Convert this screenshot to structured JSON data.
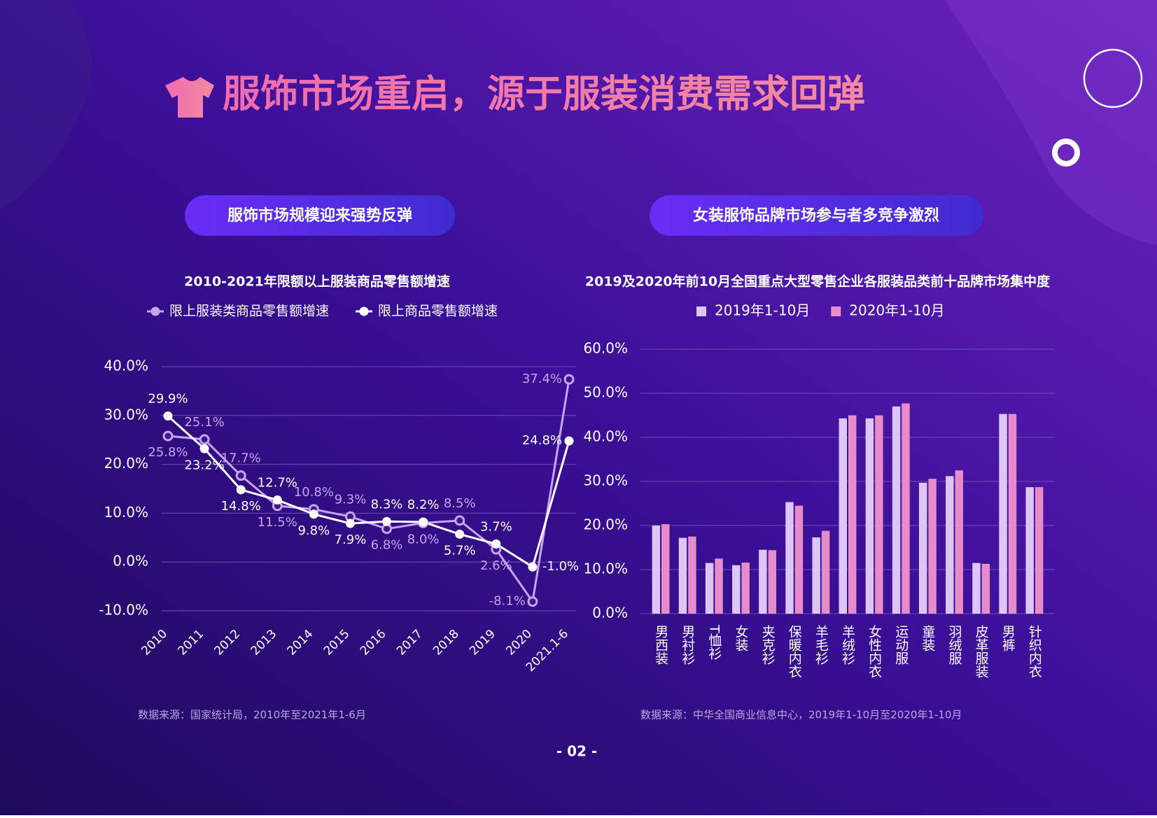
{
  "title": "服饰市场重启，源于服装消费需求回弹",
  "page_number": "- 02 -",
  "chart_data": [
    {
      "type": "line",
      "heading": "服饰市场规模迎来强势反弹",
      "title": "2010-2021年限额以上服装商品零售额增速",
      "source": "数据来源：国家统计局，2010年至2021年1-6月",
      "categories": [
        "2010",
        "2011",
        "2012",
        "2013",
        "2014",
        "2015",
        "2016",
        "2017",
        "2018",
        "2019",
        "2020",
        "2021.1-6"
      ],
      "series": [
        {
          "name": "限上服装类商品零售额增速",
          "color": "#c9a3f0",
          "values": [
            25.8,
            25.1,
            17.7,
            11.5,
            10.8,
            9.3,
            6.8,
            8.0,
            8.5,
            2.6,
            -8.1,
            37.4
          ],
          "value_labels": [
            "25.8%",
            "25.1%",
            "17.7%",
            "11.5%",
            "10.8%",
            "9.3%",
            "6.8%",
            "8.0%",
            "8.5%",
            "2.6%",
            "-8.1%",
            "37.4%"
          ]
        },
        {
          "name": "限上商品零售额增速",
          "color": "#ffffff",
          "values": [
            29.9,
            23.2,
            14.8,
            12.7,
            9.8,
            7.9,
            8.3,
            8.2,
            5.7,
            3.7,
            -1.0,
            24.8
          ],
          "value_labels": [
            "29.9%",
            "23.2%",
            "14.8%",
            "12.7%",
            "9.8%",
            "7.9%",
            "8.3%",
            "8.2%",
            "5.7%",
            "3.7%",
            "-1.0%",
            "24.8%"
          ]
        }
      ],
      "ylim": [
        -10,
        40
      ],
      "yticks": [
        {
          "value": -10,
          "label": "-10.0%"
        },
        {
          "value": 0,
          "label": "0.0%"
        },
        {
          "value": 10,
          "label": "10.0%"
        },
        {
          "value": 20,
          "label": "20.0%"
        },
        {
          "value": 30,
          "label": "30.0%"
        },
        {
          "value": 40,
          "label": "40.0%"
        }
      ],
      "grid": true
    },
    {
      "type": "bar",
      "heading": "女装服饰品牌市场参与者多竞争激烈",
      "title": "2019及2020年前10月全国重点大型零售企业各服装品类前十品牌市场集中度",
      "source": "数据来源：中华全国商业信息中心，2019年1-10月至2020年1-10月",
      "categories": [
        "男西装",
        "男衬衫",
        "T恤衫",
        "女装",
        "夹克衫",
        "保暖内衣",
        "羊毛衫",
        "羊绒衫",
        "女性内衣",
        "运动服",
        "童装",
        "羽绒服",
        "皮革服装",
        "男裤",
        "针织内衣"
      ],
      "series": [
        {
          "name": "2019年1-10月",
          "color": "#dcc6f7",
          "values": [
            20.0,
            17.2,
            11.5,
            11.0,
            14.5,
            25.3,
            17.3,
            44.3,
            44.3,
            47.0,
            29.7,
            31.2,
            11.5,
            45.3,
            28.7
          ]
        },
        {
          "name": "2020年1-10月",
          "color": "#e68ccb",
          "values": [
            20.3,
            17.5,
            12.5,
            11.6,
            14.4,
            24.5,
            18.8,
            45.0,
            45.0,
            47.7,
            30.6,
            32.5,
            11.3,
            45.3,
            28.7
          ]
        }
      ],
      "ylim": [
        0,
        60
      ],
      "yticks": [
        {
          "value": 0,
          "label": "0.0%"
        },
        {
          "value": 10,
          "label": "10.0%"
        },
        {
          "value": 20,
          "label": "20.0%"
        },
        {
          "value": 30,
          "label": "30.0%"
        },
        {
          "value": 40,
          "label": "40.0%"
        },
        {
          "value": 50,
          "label": "50.0%"
        },
        {
          "value": 60,
          "label": "60.0%"
        }
      ],
      "grid": true
    }
  ]
}
